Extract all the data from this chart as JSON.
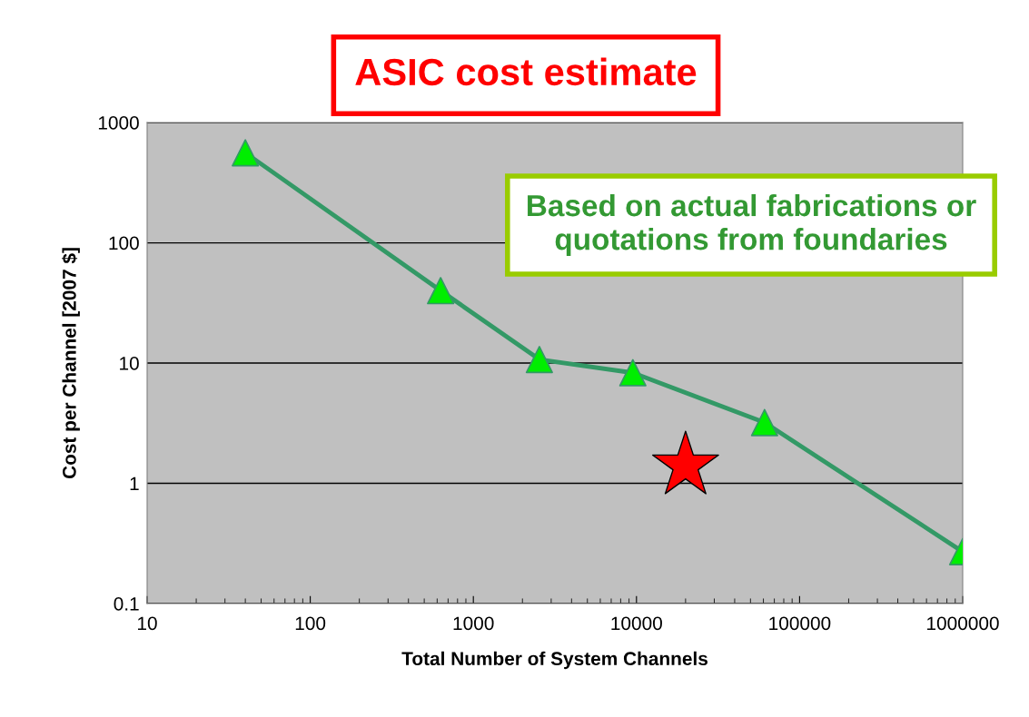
{
  "chart_data": {
    "type": "line",
    "title": "ASIC cost estimate",
    "xlabel": "Total Number of System Channels",
    "ylabel": "Cost per Channel [2007 $]",
    "log": "xy",
    "xlim": [
      10,
      1000000
    ],
    "ylim": [
      0.1,
      1000
    ],
    "xticks": [
      10,
      100,
      1000,
      10000,
      100000,
      1000000
    ],
    "yticks": [
      0.1,
      1,
      10,
      100,
      1000
    ],
    "grid": "y",
    "series": [
      {
        "marker": "triangle",
        "color": "#339966",
        "x": [
          40,
          630,
          2540,
          9500,
          61000,
          1000000
        ],
        "values": [
          560,
          40,
          10.7,
          8.3,
          3.2,
          0.27
        ]
      },
      {
        "type": "scatter",
        "marker": "star",
        "color": "#ff0000",
        "x": [
          20000
        ],
        "values": [
          1.4
        ]
      }
    ],
    "annotations": [
      "Based on actual fabrications or quotations from foundaries"
    ]
  }
}
